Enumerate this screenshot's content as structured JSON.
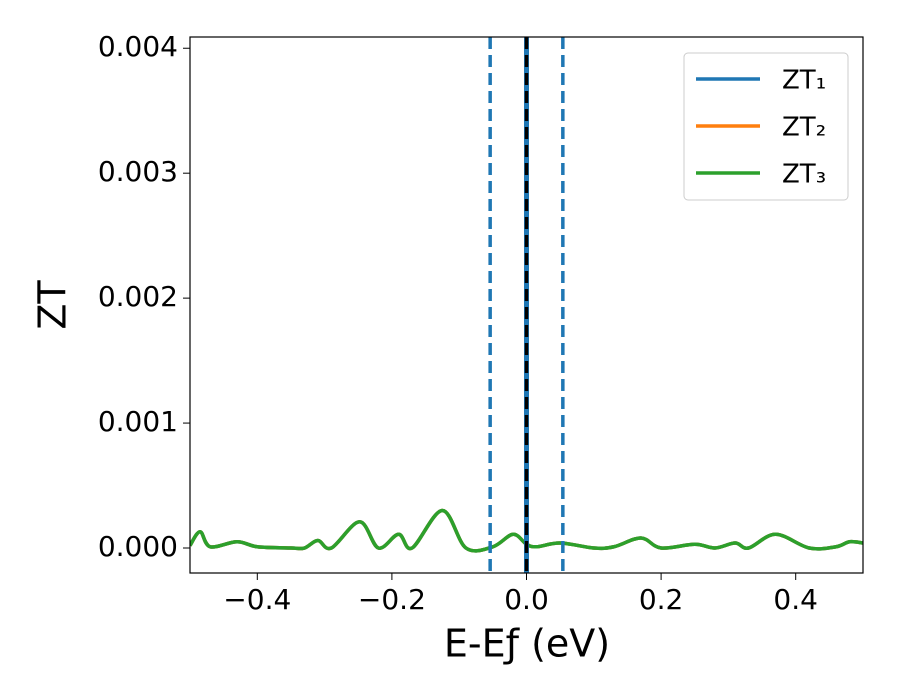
{
  "chart_data": {
    "type": "line",
    "xlabel": "E-Eƒ (eV)",
    "ylabel": "ZT",
    "x": [
      -0.5,
      -0.485,
      -0.47,
      -0.43,
      -0.4,
      -0.35,
      -0.33,
      -0.31,
      -0.29,
      -0.248,
      -0.22,
      -0.19,
      -0.17,
      -0.125,
      -0.09,
      -0.05,
      -0.02,
      0.0,
      0.015,
      0.05,
      0.1,
      0.13,
      0.17,
      0.2,
      0.25,
      0.28,
      0.31,
      0.33,
      0.37,
      0.42,
      0.46,
      0.48,
      0.5
    ],
    "series": [
      {
        "name": "ZT₁",
        "color": "#1f77b4",
        "values": [
          2e-05,
          0.00013,
          1e-05,
          5e-05,
          1e-05,
          0.0,
          0.0,
          6e-05,
          0.0,
          0.00021,
          0.0,
          0.00011,
          0.0,
          0.0003,
          0.0,
          1e-05,
          0.00011,
          3e-05,
          1e-05,
          4e-05,
          0.0,
          1e-05,
          8e-05,
          0.0,
          3e-05,
          0.0,
          4e-05,
          0.0,
          0.00011,
          0.0,
          1e-05,
          5e-05,
          4e-05
        ]
      },
      {
        "name": "ZT₂",
        "color": "#ff7f0e",
        "values": [
          2e-05,
          0.00013,
          1e-05,
          5e-05,
          1e-05,
          0.0,
          0.0,
          6e-05,
          0.0,
          0.00021,
          0.0,
          0.00011,
          0.0,
          0.0003,
          0.0,
          1e-05,
          0.00011,
          3e-05,
          1e-05,
          4e-05,
          0.0,
          1e-05,
          8e-05,
          0.0,
          3e-05,
          0.0,
          4e-05,
          0.0,
          0.00011,
          0.0,
          1e-05,
          5e-05,
          4e-05
        ]
      },
      {
        "name": "ZT₃",
        "color": "#2ca02c",
        "values": [
          2e-05,
          0.00013,
          1e-05,
          5e-05,
          1e-05,
          0.0,
          0.0,
          6e-05,
          0.0,
          0.00021,
          0.0,
          0.00011,
          0.0,
          0.0003,
          0.0,
          1e-05,
          0.00011,
          3e-05,
          1e-05,
          4e-05,
          0.0,
          1e-05,
          8e-05,
          0.0,
          3e-05,
          0.0,
          4e-05,
          0.0,
          0.00011,
          0.0,
          1e-05,
          5e-05,
          4e-05
        ]
      }
    ],
    "vlines": [
      {
        "x": -0.054,
        "color": "#1f77b4",
        "style": "dashed"
      },
      {
        "x": 0.054,
        "color": "#1f77b4",
        "style": "dashed"
      },
      {
        "x": 0,
        "color": "#1f77b4",
        "style": "solid"
      },
      {
        "x": 0,
        "color": "#000000",
        "style": "dashed"
      }
    ],
    "xlim": [
      -0.5,
      0.5
    ],
    "ylim": [
      -0.0002,
      0.00409
    ],
    "xticks": [
      {
        "value": -0.4,
        "label": "−0.4"
      },
      {
        "value": -0.2,
        "label": "−0.2"
      },
      {
        "value": 0,
        "label": "0.0"
      },
      0.2,
      0.4
    ],
    "yticks": [
      {
        "value": 0,
        "label": "0.000"
      },
      {
        "value": 0.001,
        "label": "0.001"
      },
      {
        "value": 0.002,
        "label": "0.002"
      },
      {
        "value": 0.003,
        "label": "0.003"
      },
      {
        "value": 0.004,
        "label": "0.004"
      }
    ],
    "legend": "upper right",
    "grid": false
  }
}
